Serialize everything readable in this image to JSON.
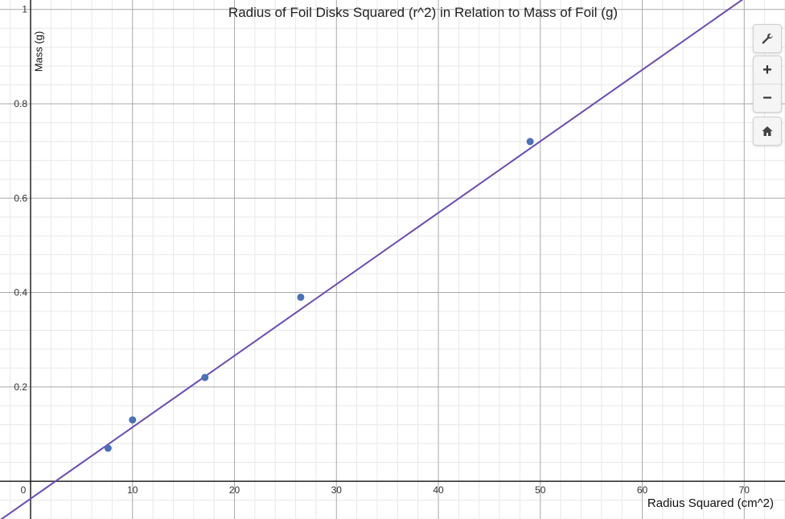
{
  "chart_data": {
    "type": "scatter",
    "title": "Radius of Foil Disks Squared (r^2) in Relation to Mass of Foil (g)",
    "xlabel": "Radius Squared (cm^2)",
    "ylabel": "Mass (g)",
    "xlim": [
      -3,
      74
    ],
    "ylim": [
      -0.08,
      1.02
    ],
    "x_ticks": [
      0,
      10,
      20,
      30,
      40,
      50,
      60,
      70
    ],
    "y_ticks": [
      0.2,
      0.4,
      0.6,
      0.8,
      1
    ],
    "x_tick_labels": [
      "0",
      "10",
      "20",
      "30",
      "40",
      "50",
      "60",
      "70"
    ],
    "y_tick_labels": [
      "0.2",
      "0.4",
      "0.6",
      "0.8",
      "1"
    ],
    "grid": true,
    "series": [
      {
        "x": [
          7.6,
          10.0,
          17.1,
          26.5,
          49.0
        ],
        "y": [
          0.07,
          0.13,
          0.22,
          0.39,
          0.72
        ],
        "color": "#4a72b8"
      }
    ],
    "trendline": {
      "slope": 0.01515,
      "intercept": -0.037,
      "color": "#6a4bb3"
    }
  },
  "toolbar": {
    "settings_icon": "wrench-icon",
    "zoom_in_icon": "plus-icon",
    "zoom_out_icon": "minus-icon",
    "home_icon": "home-icon",
    "zoom_in_glyph": "+",
    "zoom_out_glyph": "−"
  }
}
